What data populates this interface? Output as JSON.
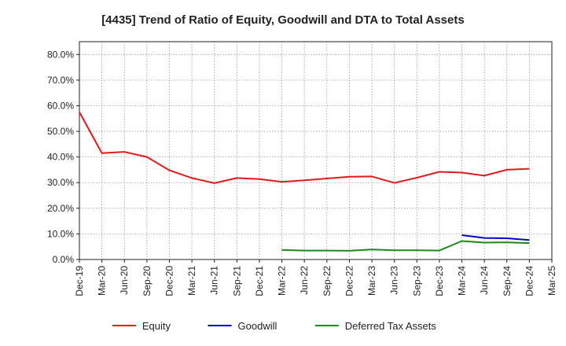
{
  "chart_data": {
    "type": "line",
    "title": "[4435]  Trend of Ratio of Equity, Goodwill and DTA to Total Assets",
    "xlabel": "",
    "ylabel": "",
    "ylim": [
      0,
      85
    ],
    "yticks": [
      0,
      10,
      20,
      30,
      40,
      50,
      60,
      70,
      80
    ],
    "ytick_labels": [
      "0.0%",
      "10.0%",
      "20.0%",
      "30.0%",
      "40.0%",
      "50.0%",
      "60.0%",
      "70.0%",
      "80.0%"
    ],
    "categories": [
      "Dec-19",
      "Mar-20",
      "Jun-20",
      "Sep-20",
      "Dec-20",
      "Mar-21",
      "Jun-21",
      "Sep-21",
      "Dec-21",
      "Mar-22",
      "Jun-22",
      "Sep-22",
      "Dec-22",
      "Mar-23",
      "Jun-23",
      "Sep-23",
      "Dec-23",
      "Mar-24",
      "Jun-24",
      "Sep-24",
      "Dec-24",
      "Mar-25"
    ],
    "grid": true,
    "legend_position": "bottom",
    "series": [
      {
        "name": "Equity",
        "color": "#e31a1c",
        "values": [
          57.5,
          41.5,
          42.0,
          40.0,
          34.8,
          31.8,
          29.8,
          31.8,
          31.4,
          30.3,
          30.9,
          31.6,
          32.3,
          32.4,
          29.9,
          31.9,
          34.2,
          33.9,
          32.7,
          35.0,
          35.4,
          null
        ]
      },
      {
        "name": "Goodwill",
        "color": "#0000cc",
        "values": [
          null,
          null,
          null,
          null,
          null,
          null,
          null,
          null,
          null,
          null,
          null,
          null,
          null,
          null,
          null,
          null,
          null,
          9.5,
          8.4,
          8.3,
          7.6,
          null
        ]
      },
      {
        "name": "Deferred Tax Assets",
        "color": "#1a8a1a",
        "values": [
          null,
          null,
          null,
          null,
          null,
          null,
          null,
          null,
          null,
          3.7,
          3.5,
          3.5,
          3.4,
          3.9,
          3.6,
          3.6,
          3.5,
          7.2,
          6.6,
          6.7,
          6.4,
          null
        ]
      }
    ]
  }
}
